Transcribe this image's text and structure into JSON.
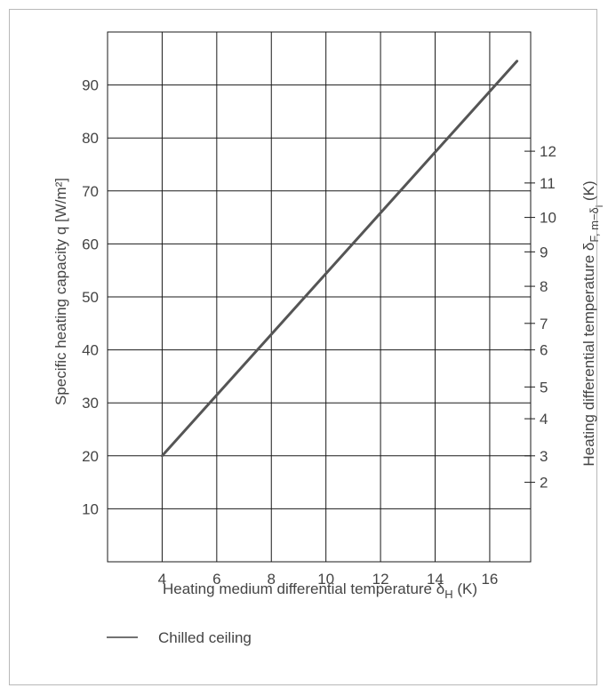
{
  "chart_data": {
    "type": "line",
    "xlabel": "Heating medium differential temperature δ",
    "xlabel_sub": "H",
    "xlabel_unit": " (K)",
    "ylabel": "Specific heating capacity q [W/m²]",
    "y2label": "Heating differential temperature δ",
    "y2label_sub": "F, m−δ",
    "y2label_sub2": "i",
    "y2label_unit": " (K)",
    "xlim": [
      2,
      17.5
    ],
    "ylim": [
      0,
      100
    ],
    "x_ticks": [
      4,
      6,
      8,
      10,
      12,
      14,
      16
    ],
    "y_ticks": [
      10,
      20,
      30,
      40,
      50,
      60,
      70,
      80,
      90
    ],
    "y2_ticks": [
      {
        "label": "2",
        "y": 15
      },
      {
        "label": "3",
        "y": 20
      },
      {
        "label": "4",
        "y": 27
      },
      {
        "label": "5",
        "y": 33
      },
      {
        "label": "6",
        "y": 40
      },
      {
        "label": "7",
        "y": 45
      },
      {
        "label": "8",
        "y": 52
      },
      {
        "label": "9",
        "y": 58.5
      },
      {
        "label": "10",
        "y": 65
      },
      {
        "label": "11",
        "y": 71.5
      },
      {
        "label": "12",
        "y": 77.5
      }
    ],
    "series": [
      {
        "name": "Chilled ceiling",
        "x": [
          4,
          17
        ],
        "y": [
          20,
          94.5
        ]
      }
    ],
    "grid": true,
    "legend": "bottom-left"
  }
}
